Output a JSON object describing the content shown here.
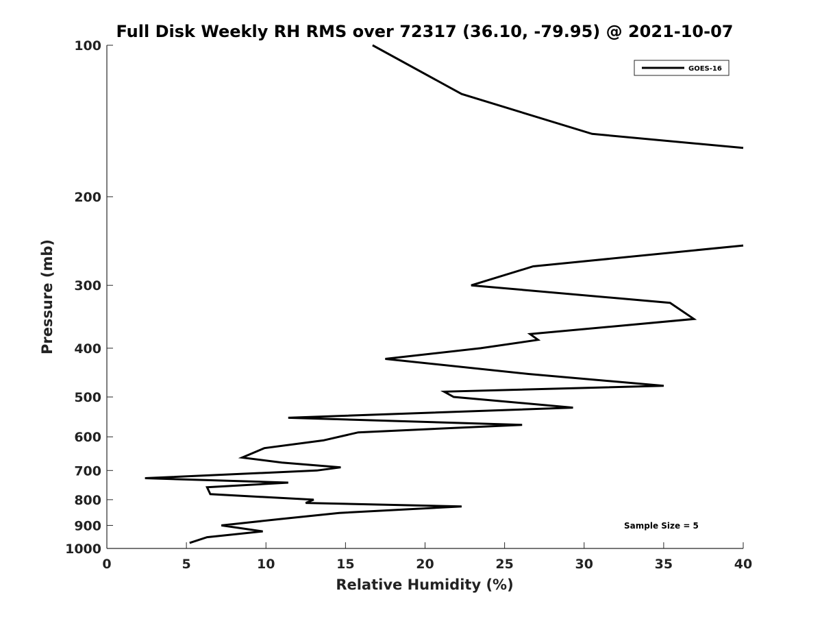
{
  "chart_data": {
    "type": "line",
    "title": "Full Disk Weekly RH RMS over 72317 (36.10, -79.95) @ 2021-10-07",
    "xlabel": "Relative Humidity (%)",
    "ylabel": "Pressure (mb)",
    "xlim": [
      0,
      40
    ],
    "ylim": [
      100,
      1000
    ],
    "y_scale": "log",
    "y_reversed": true,
    "x_ticks": [
      0,
      5,
      10,
      15,
      20,
      25,
      30,
      35,
      40
    ],
    "x_tick_labels": [
      "0",
      "5",
      "10",
      "15",
      "20",
      "25",
      "30",
      "35",
      "40"
    ],
    "y_ticks": [
      100,
      200,
      300,
      400,
      500,
      600,
      700,
      800,
      900,
      1000
    ],
    "y_tick_labels": [
      "100",
      "200",
      "300",
      "400",
      "500",
      "600",
      "700",
      "800",
      "900",
      "1000"
    ],
    "grid": false,
    "legend_position": "top-right",
    "annotation": "Sample Size = 5",
    "series": [
      {
        "name": "GOES-16",
        "color": "#000000",
        "segments": [
          [
            [
              16.7,
              100
            ],
            [
              22.3,
              125
            ],
            [
              30.5,
              150
            ],
            [
              40.0,
              160
            ]
          ],
          [
            [
              40.0,
              250
            ],
            [
              26.8,
              275
            ],
            [
              22.9,
              300
            ],
            [
              35.4,
              325
            ],
            [
              36.9,
              350
            ],
            [
              26.6,
              375
            ],
            [
              27.1,
              385
            ],
            [
              23.5,
              400
            ],
            [
              17.5,
              420
            ],
            [
              26.5,
              450
            ],
            [
              35.0,
              475
            ],
            [
              21.2,
              488
            ],
            [
              21.8,
              500
            ],
            [
              29.3,
              525
            ],
            [
              11.4,
              550
            ],
            [
              26.1,
              568
            ],
            [
              15.8,
              588
            ],
            [
              13.6,
              610
            ],
            [
              9.9,
              632
            ],
            [
              8.5,
              660
            ],
            [
              11.0,
              675
            ],
            [
              14.7,
              690
            ],
            [
              13.2,
              700
            ],
            [
              2.4,
              725
            ],
            [
              11.4,
              740
            ],
            [
              6.3,
              756
            ],
            [
              6.5,
              780
            ],
            [
              13.0,
              800
            ],
            [
              12.5,
              812
            ],
            [
              22.3,
              825
            ],
            [
              14.6,
              850
            ],
            [
              10.8,
              875
            ],
            [
              7.2,
              900
            ],
            [
              9.8,
              925
            ],
            [
              6.3,
              950
            ],
            [
              5.2,
              975
            ]
          ]
        ]
      }
    ]
  }
}
